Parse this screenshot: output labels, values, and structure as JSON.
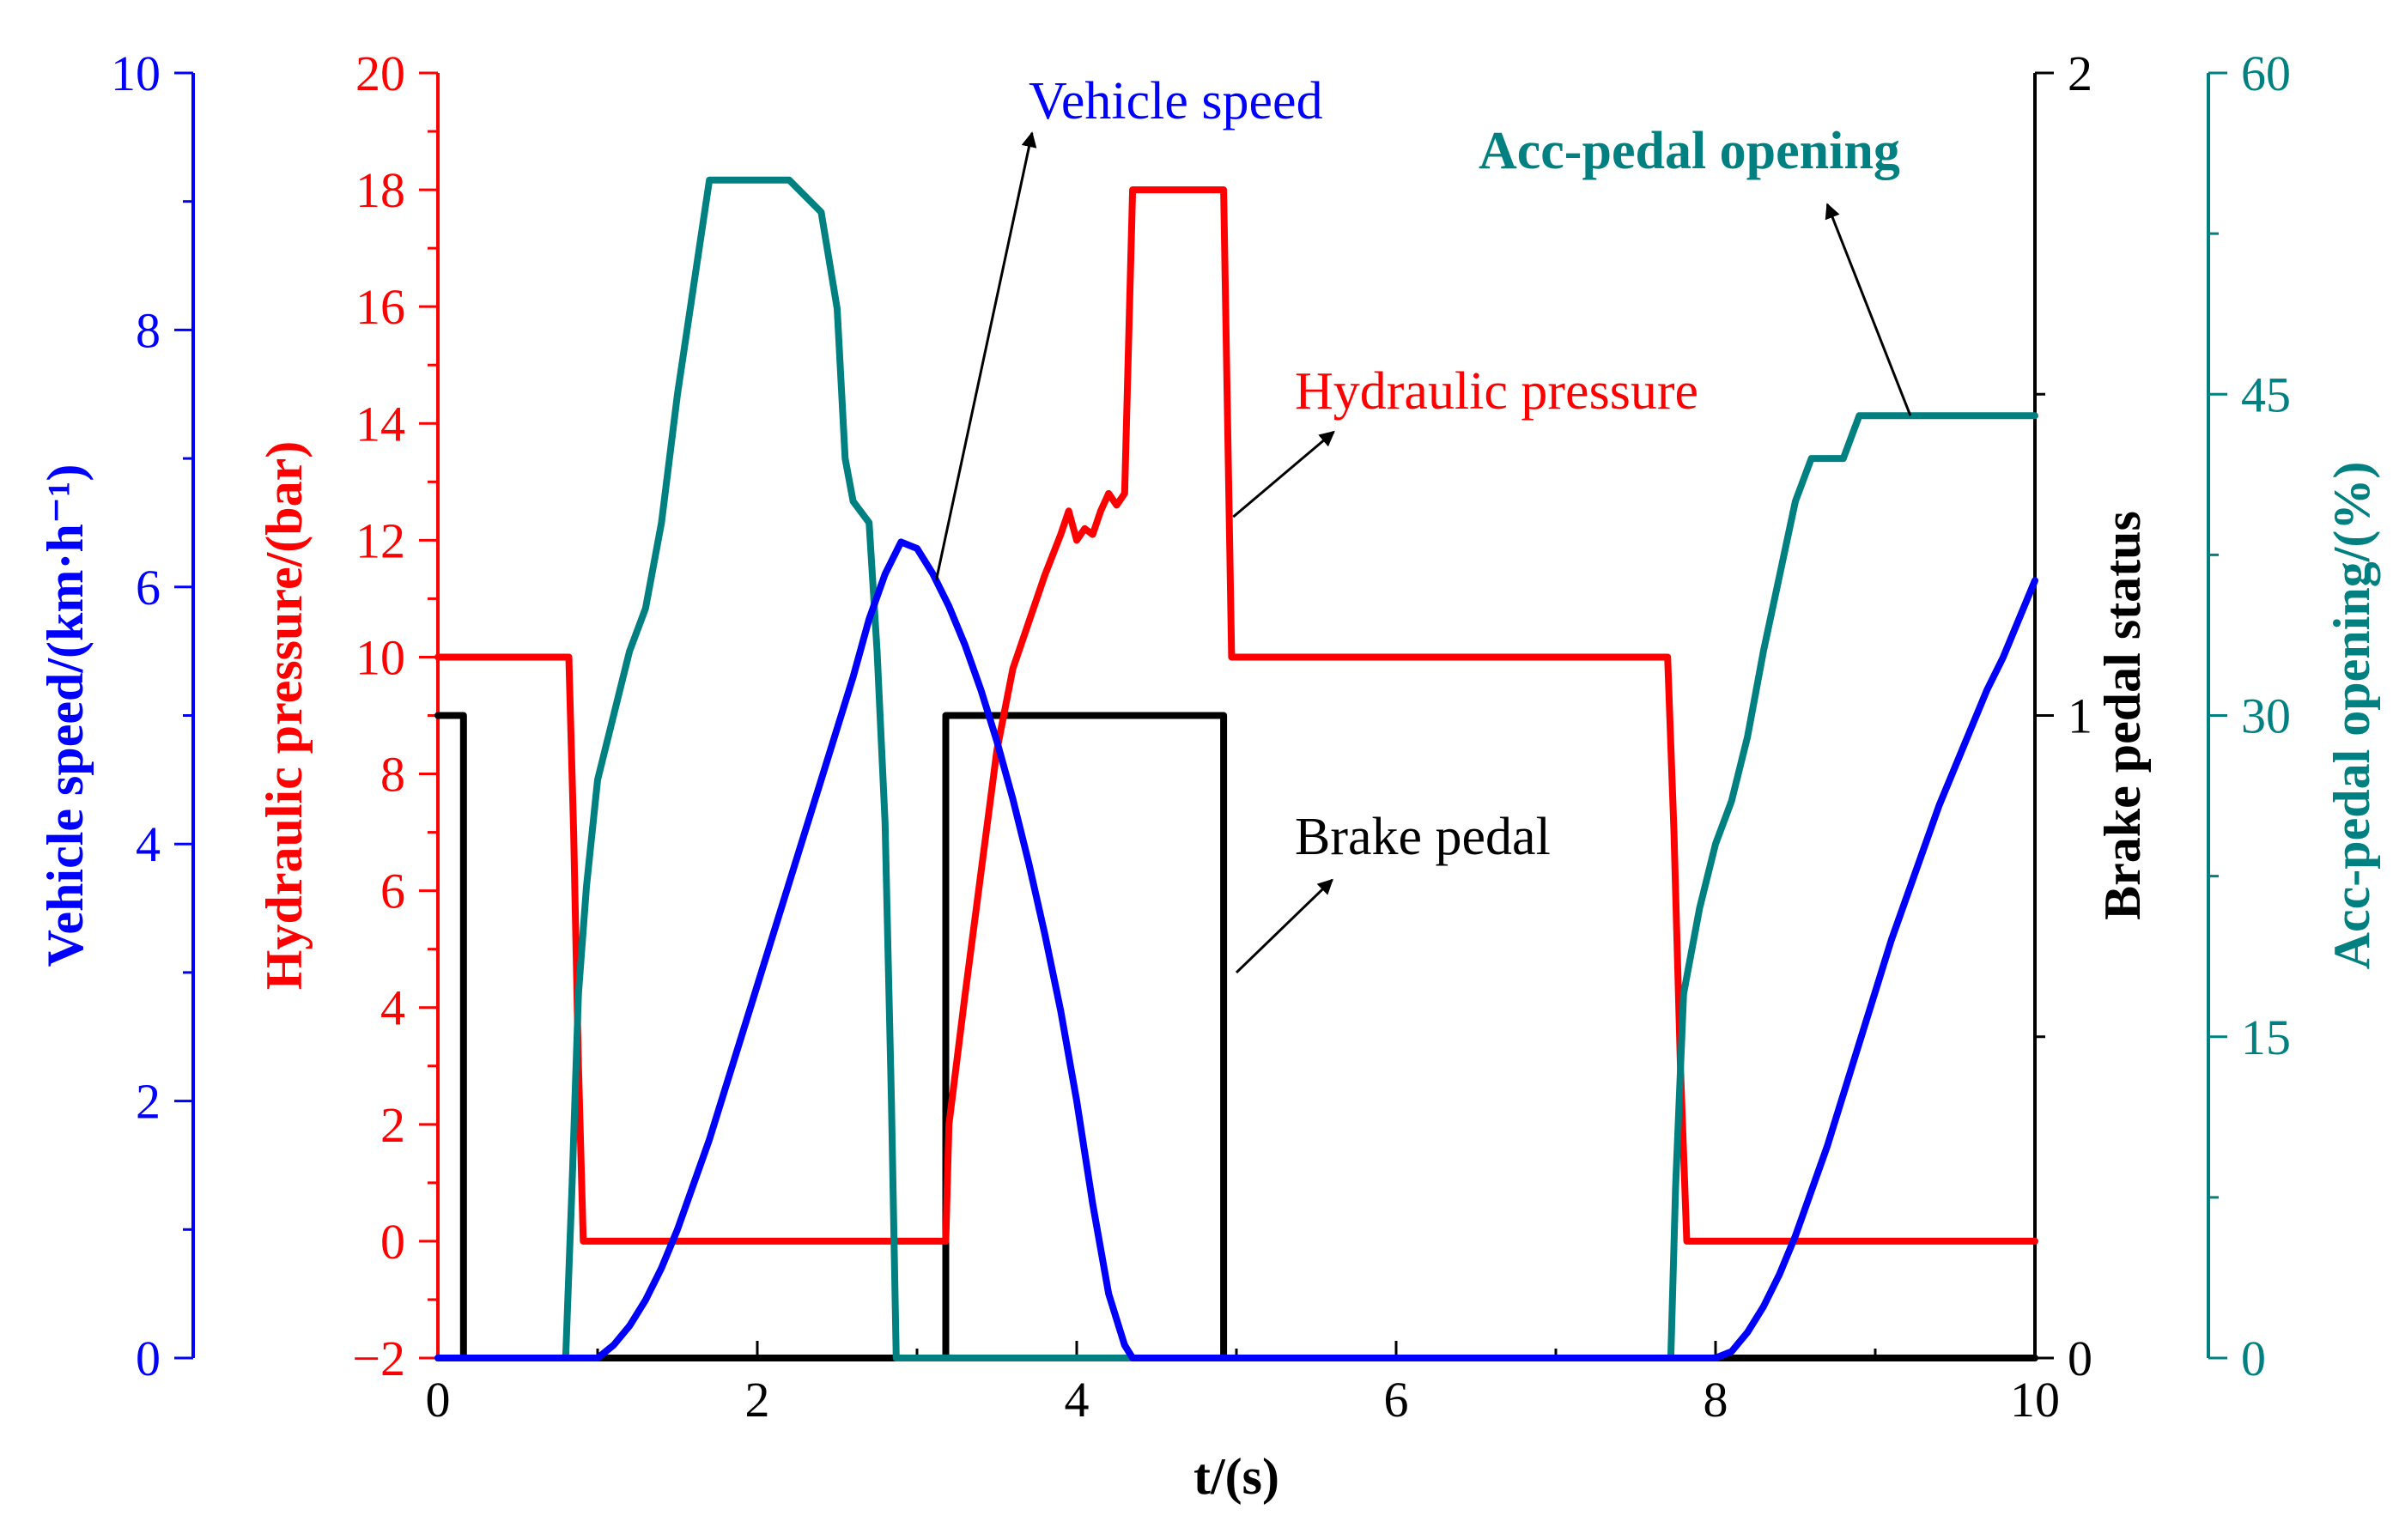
{
  "chart_data": {
    "type": "line",
    "x_axis": {
      "label": "t/(s)",
      "range": [
        0,
        10
      ],
      "ticks": [
        0,
        2,
        4,
        6,
        8,
        10
      ],
      "tick_labels": [
        "0",
        "2",
        "4",
        "6",
        "8",
        "10"
      ]
    },
    "y_axes": [
      {
        "id": "speed",
        "label": "Vehicle speed/(km·h⁻¹)",
        "range": [
          0,
          10
        ],
        "ticks": [
          0,
          2,
          4,
          6,
          8,
          10
        ],
        "tick_labels": [
          "0",
          "2",
          "4",
          "6",
          "8",
          "10"
        ],
        "position": "left-outer",
        "color": "#0000ff"
      },
      {
        "id": "pressure",
        "label": "Hydraulic pressure/(bar)",
        "range": [
          -2,
          20
        ],
        "ticks": [
          -2,
          0,
          2,
          4,
          6,
          8,
          10,
          12,
          14,
          16,
          18,
          20
        ],
        "tick_labels": [
          "−2",
          "0",
          "2",
          "4",
          "6",
          "8",
          "10",
          "12",
          "14",
          "16",
          "18",
          "20"
        ],
        "position": "left-inner",
        "color": "#ff0000"
      },
      {
        "id": "brake",
        "label": "Brake pedal status",
        "range": [
          0,
          2
        ],
        "ticks": [
          0,
          1,
          2
        ],
        "tick_labels": [
          "0",
          "1",
          "2"
        ],
        "position": "right-inner",
        "color": "#000000"
      },
      {
        "id": "acc",
        "label": "Acc-pedal opening/(%)",
        "range": [
          0,
          60
        ],
        "ticks": [
          0,
          15,
          30,
          45,
          60
        ],
        "tick_labels": [
          "0",
          "15",
          "30",
          "45",
          "60"
        ],
        "position": "right-outer",
        "color": "#008080"
      }
    ],
    "series": [
      {
        "name": "Vehicle speed",
        "axis": "speed",
        "color": "#0000ff",
        "points": [
          [
            0.0,
            0.0
          ],
          [
            1.0,
            0.0
          ],
          [
            1.1,
            0.1
          ],
          [
            1.2,
            0.25
          ],
          [
            1.3,
            0.45
          ],
          [
            1.4,
            0.7
          ],
          [
            1.5,
            1.0
          ],
          [
            1.6,
            1.35
          ],
          [
            1.7,
            1.7
          ],
          [
            1.8,
            2.1
          ],
          [
            1.9,
            2.5
          ],
          [
            2.0,
            2.9
          ],
          [
            2.1,
            3.3
          ],
          [
            2.2,
            3.7
          ],
          [
            2.3,
            4.1
          ],
          [
            2.4,
            4.5
          ],
          [
            2.5,
            4.9
          ],
          [
            2.6,
            5.3
          ],
          [
            2.7,
            5.75
          ],
          [
            2.8,
            6.1
          ],
          [
            2.9,
            6.35
          ],
          [
            3.0,
            6.3
          ],
          [
            3.1,
            6.1
          ],
          [
            3.2,
            5.85
          ],
          [
            3.3,
            5.55
          ],
          [
            3.4,
            5.2
          ],
          [
            3.5,
            4.8
          ],
          [
            3.6,
            4.35
          ],
          [
            3.7,
            3.85
          ],
          [
            3.8,
            3.3
          ],
          [
            3.9,
            2.7
          ],
          [
            4.0,
            2.0
          ],
          [
            4.1,
            1.2
          ],
          [
            4.2,
            0.5
          ],
          [
            4.3,
            0.1
          ],
          [
            4.35,
            0.0
          ],
          [
            8.0,
            0.0
          ],
          [
            8.1,
            0.05
          ],
          [
            8.2,
            0.2
          ],
          [
            8.3,
            0.4
          ],
          [
            8.4,
            0.65
          ],
          [
            8.5,
            0.95
          ],
          [
            8.6,
            1.3
          ],
          [
            8.7,
            1.65
          ],
          [
            8.8,
            2.05
          ],
          [
            8.9,
            2.45
          ],
          [
            9.0,
            2.85
          ],
          [
            9.1,
            3.25
          ],
          [
            9.2,
            3.6
          ],
          [
            9.3,
            3.95
          ],
          [
            9.4,
            4.3
          ],
          [
            9.5,
            4.6
          ],
          [
            9.6,
            4.9
          ],
          [
            9.7,
            5.2
          ],
          [
            9.8,
            5.45
          ],
          [
            9.9,
            5.75
          ],
          [
            10.0,
            6.05
          ]
        ]
      },
      {
        "name": "Hydraulic pressure",
        "axis": "pressure",
        "color": "#ff0000",
        "points": [
          [
            0.0,
            10.0
          ],
          [
            0.82,
            10.0
          ],
          [
            0.85,
            7.0
          ],
          [
            0.88,
            3.0
          ],
          [
            0.91,
            0.0
          ],
          [
            3.18,
            0.0
          ],
          [
            3.2,
            2.0
          ],
          [
            3.3,
            4.2
          ],
          [
            3.4,
            6.3
          ],
          [
            3.5,
            8.4
          ],
          [
            3.6,
            9.8
          ],
          [
            3.7,
            10.6
          ],
          [
            3.8,
            11.4
          ],
          [
            3.9,
            12.1
          ],
          [
            3.95,
            12.5
          ],
          [
            4.0,
            12.0
          ],
          [
            4.05,
            12.2
          ],
          [
            4.1,
            12.1
          ],
          [
            4.15,
            12.5
          ],
          [
            4.2,
            12.8
          ],
          [
            4.25,
            12.6
          ],
          [
            4.3,
            12.8
          ],
          [
            4.35,
            18.0
          ],
          [
            4.92,
            18.0
          ],
          [
            4.97,
            10.0
          ],
          [
            7.7,
            10.0
          ],
          [
            7.74,
            7.0
          ],
          [
            7.78,
            3.0
          ],
          [
            7.82,
            0.0
          ],
          [
            10.0,
            0.0
          ]
        ]
      },
      {
        "name": "Brake pedal",
        "axis": "brake",
        "color": "#000000",
        "points": [
          [
            0.0,
            1.0
          ],
          [
            0.16,
            1.0
          ],
          [
            0.16,
            0.0
          ],
          [
            3.18,
            0.0
          ],
          [
            3.18,
            1.0
          ],
          [
            4.92,
            1.0
          ],
          [
            4.92,
            0.0
          ],
          [
            10.0,
            0.0
          ]
        ]
      },
      {
        "name": "Acc-pedal opening",
        "axis": "acc",
        "color": "#008080",
        "points": [
          [
            0.0,
            0.0
          ],
          [
            0.8,
            0.0
          ],
          [
            0.84,
            8.0
          ],
          [
            0.88,
            17.0
          ],
          [
            0.93,
            22.0
          ],
          [
            1.0,
            27.0
          ],
          [
            1.1,
            30.0
          ],
          [
            1.2,
            33.0
          ],
          [
            1.3,
            35.0
          ],
          [
            1.4,
            39.0
          ],
          [
            1.5,
            45.0
          ],
          [
            1.6,
            50.0
          ],
          [
            1.7,
            55.0
          ],
          [
            2.0,
            55.0
          ],
          [
            2.2,
            55.0
          ],
          [
            2.4,
            53.5
          ],
          [
            2.5,
            49.0
          ],
          [
            2.55,
            42.0
          ],
          [
            2.6,
            40.0
          ],
          [
            2.7,
            39.0
          ],
          [
            2.75,
            33.0
          ],
          [
            2.8,
            25.0
          ],
          [
            2.84,
            12.0
          ],
          [
            2.87,
            0.0
          ],
          [
            7.72,
            0.0
          ],
          [
            7.75,
            8.0
          ],
          [
            7.8,
            17.0
          ],
          [
            7.9,
            21.0
          ],
          [
            8.0,
            24.0
          ],
          [
            8.1,
            26.0
          ],
          [
            8.2,
            29.0
          ],
          [
            8.3,
            33.0
          ],
          [
            8.4,
            36.5
          ],
          [
            8.5,
            40.0
          ],
          [
            8.6,
            42.0
          ],
          [
            8.8,
            42.0
          ],
          [
            8.9,
            44.0
          ],
          [
            9.2,
            44.0
          ],
          [
            10.0,
            44.0
          ]
        ]
      }
    ],
    "annotations": [
      {
        "text": "Vehicle speed",
        "color": "#0000ff",
        "weight": "normal"
      },
      {
        "text": "Acc-pedal opening",
        "color": "#008080",
        "weight": "bold"
      },
      {
        "text": "Hydraulic pressure",
        "color": "#ff0000",
        "weight": "normal"
      },
      {
        "text": "Brake pedal",
        "color": "#000000",
        "weight": "normal"
      }
    ]
  }
}
